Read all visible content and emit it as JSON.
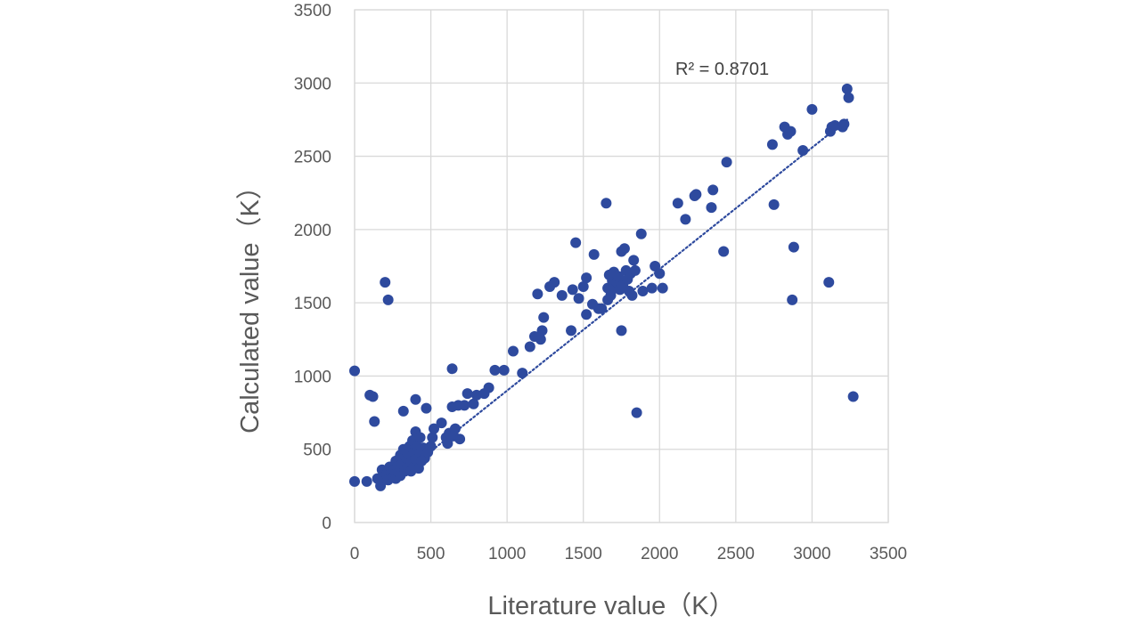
{
  "chart_data": {
    "type": "scatter",
    "title": "",
    "xlabel": "Literature value（K）",
    "ylabel": "Calculated value（K）",
    "xlim": [
      0,
      3500
    ],
    "ylim": [
      0,
      3500
    ],
    "xticks": [
      0,
      500,
      1000,
      1500,
      2000,
      2500,
      3000,
      3500
    ],
    "yticks": [
      0,
      500,
      1000,
      1500,
      2000,
      2500,
      3000,
      3500
    ],
    "grid": true,
    "legend": "none",
    "marker_color": "#2E4A9E",
    "annotation": "R² = 0.8701",
    "trendline": {
      "style": "dotted",
      "x": [
        300,
        3230
      ],
      "y": [
        320,
        2750
      ]
    },
    "series": [
      {
        "points": [
          [
            0,
            280
          ],
          [
            0,
            1035
          ],
          [
            80,
            280
          ],
          [
            100,
            870
          ],
          [
            120,
            860
          ],
          [
            130,
            690
          ],
          [
            150,
            300
          ],
          [
            170,
            250
          ],
          [
            180,
            360
          ],
          [
            190,
            310
          ],
          [
            200,
            1640
          ],
          [
            220,
            1520
          ],
          [
            210,
            330
          ],
          [
            220,
            290
          ],
          [
            230,
            380
          ],
          [
            240,
            340
          ],
          [
            250,
            310
          ],
          [
            260,
            360
          ],
          [
            270,
            420
          ],
          [
            270,
            300
          ],
          [
            280,
            380
          ],
          [
            290,
            340
          ],
          [
            300,
            460
          ],
          [
            300,
            320
          ],
          [
            310,
            400
          ],
          [
            320,
            500
          ],
          [
            320,
            760
          ],
          [
            330,
            350
          ],
          [
            340,
            440
          ],
          [
            350,
            380
          ],
          [
            350,
            470
          ],
          [
            360,
            520
          ],
          [
            370,
            410
          ],
          [
            370,
            350
          ],
          [
            380,
            560
          ],
          [
            390,
            480
          ],
          [
            390,
            380
          ],
          [
            400,
            620
          ],
          [
            400,
            430
          ],
          [
            400,
            840
          ],
          [
            410,
            520
          ],
          [
            420,
            370
          ],
          [
            430,
            470
          ],
          [
            430,
            580
          ],
          [
            440,
            420
          ],
          [
            450,
            510
          ],
          [
            460,
            440
          ],
          [
            470,
            780
          ],
          [
            480,
            480
          ],
          [
            500,
            520
          ],
          [
            510,
            580
          ],
          [
            520,
            640
          ],
          [
            570,
            680
          ],
          [
            600,
            580
          ],
          [
            610,
            540
          ],
          [
            620,
            610
          ],
          [
            640,
            790
          ],
          [
            640,
            1050
          ],
          [
            650,
            590
          ],
          [
            660,
            640
          ],
          [
            680,
            800
          ],
          [
            690,
            570
          ],
          [
            720,
            800
          ],
          [
            740,
            880
          ],
          [
            780,
            810
          ],
          [
            800,
            870
          ],
          [
            850,
            880
          ],
          [
            880,
            920
          ],
          [
            920,
            1040
          ],
          [
            980,
            1040
          ],
          [
            1040,
            1170
          ],
          [
            1100,
            1020
          ],
          [
            1150,
            1200
          ],
          [
            1180,
            1270
          ],
          [
            1200,
            1560
          ],
          [
            1220,
            1250
          ],
          [
            1230,
            1310
          ],
          [
            1240,
            1400
          ],
          [
            1280,
            1610
          ],
          [
            1310,
            1640
          ],
          [
            1360,
            1550
          ],
          [
            1420,
            1310
          ],
          [
            1430,
            1590
          ],
          [
            1450,
            1910
          ],
          [
            1470,
            1530
          ],
          [
            1500,
            1610
          ],
          [
            1520,
            1420
          ],
          [
            1520,
            1670
          ],
          [
            1560,
            1490
          ],
          [
            1570,
            1830
          ],
          [
            1600,
            1460
          ],
          [
            1620,
            1460
          ],
          [
            1650,
            2180
          ],
          [
            1660,
            1600
          ],
          [
            1660,
            1520
          ],
          [
            1670,
            1690
          ],
          [
            1680,
            1550
          ],
          [
            1690,
            1650
          ],
          [
            1700,
            1710
          ],
          [
            1710,
            1600
          ],
          [
            1720,
            1640
          ],
          [
            1730,
            1680
          ],
          [
            1740,
            1590
          ],
          [
            1750,
            1310
          ],
          [
            1750,
            1850
          ],
          [
            1760,
            1620
          ],
          [
            1770,
            1870
          ],
          [
            1780,
            1720
          ],
          [
            1790,
            1660
          ],
          [
            1800,
            1580
          ],
          [
            1810,
            1700
          ],
          [
            1820,
            1550
          ],
          [
            1830,
            1790
          ],
          [
            1840,
            1720
          ],
          [
            1850,
            750
          ],
          [
            1880,
            1970
          ],
          [
            1890,
            1580
          ],
          [
            1950,
            1600
          ],
          [
            1970,
            1750
          ],
          [
            2000,
            1700
          ],
          [
            2020,
            1600
          ],
          [
            2120,
            2180
          ],
          [
            2170,
            2070
          ],
          [
            2230,
            2230
          ],
          [
            2240,
            2240
          ],
          [
            2340,
            2150
          ],
          [
            2350,
            2270
          ],
          [
            2420,
            1850
          ],
          [
            2440,
            2460
          ],
          [
            2740,
            2580
          ],
          [
            2750,
            2170
          ],
          [
            2820,
            2700
          ],
          [
            2840,
            2650
          ],
          [
            2860,
            2670
          ],
          [
            2870,
            1520
          ],
          [
            2880,
            1880
          ],
          [
            2940,
            2540
          ],
          [
            3000,
            2820
          ],
          [
            3110,
            1640
          ],
          [
            3120,
            2670
          ],
          [
            3130,
            2700
          ],
          [
            3150,
            2710
          ],
          [
            3200,
            2700
          ],
          [
            3210,
            2720
          ],
          [
            3230,
            2960
          ],
          [
            3240,
            2900
          ],
          [
            3270,
            860
          ]
        ]
      }
    ]
  }
}
